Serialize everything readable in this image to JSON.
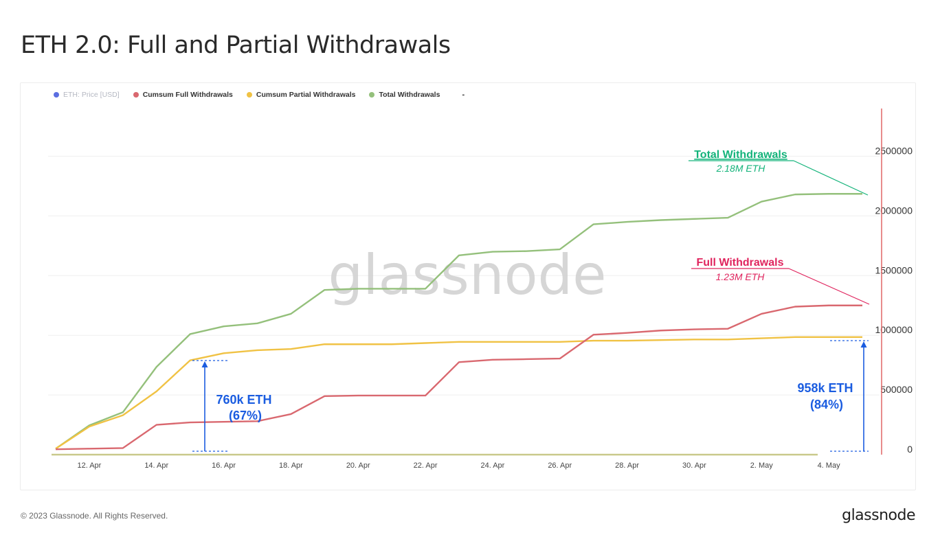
{
  "title": "ETH 2.0: Full and Partial Withdrawals",
  "footer": {
    "copyright": "© 2023 Glassnode. All Rights Reserved.",
    "logo": "glassnode"
  },
  "watermark": "glassnode",
  "legend": [
    {
      "label": "ETH: Price [USD]",
      "color": "#5b6ee1",
      "muted": true
    },
    {
      "label": "Cumsum Full Withdrawals",
      "color": "#d9686f",
      "muted": false
    },
    {
      "label": "Cumsum Partial Withdrawals",
      "color": "#f0c244",
      "muted": false
    },
    {
      "label": "Total Withdrawals",
      "color": "#94c07b",
      "muted": false
    }
  ],
  "legend_extra": "-",
  "annotations": {
    "total": {
      "title": "Total Withdrawals",
      "value": "2.18M ETH",
      "color": "#13b37a"
    },
    "full": {
      "title": "Full Withdrawals",
      "value": "1.23M ETH",
      "color": "#e0245e"
    },
    "partial_1_line1": "760k ETH",
    "partial_1_line2": "(67%)",
    "partial_2_line1": "958k ETH",
    "partial_2_line2": "(84%)",
    "callout_color": "#1a5ce0"
  },
  "chart_data": {
    "type": "line",
    "x": [
      "11 Apr",
      "12 Apr",
      "13 Apr",
      "14 Apr",
      "15 Apr",
      "16 Apr",
      "17 Apr",
      "18 Apr",
      "19 Apr",
      "20 Apr",
      "21 Apr",
      "22 Apr",
      "23 Apr",
      "24 Apr",
      "25 Apr",
      "26 Apr",
      "27 Apr",
      "28 Apr",
      "29 Apr",
      "30 Apr",
      "1 May",
      "2 May",
      "3 May",
      "4 May",
      "5 May"
    ],
    "x_tick_labels": [
      "12. Apr",
      "14. Apr",
      "16. Apr",
      "18. Apr",
      "20. Apr",
      "22. Apr",
      "24. Apr",
      "26. Apr",
      "28. Apr",
      "30. Apr",
      "2. May",
      "4. May"
    ],
    "y_tick_labels": [
      "0",
      "500000",
      "1000000",
      "1500000",
      "2000000",
      "2500000"
    ],
    "ylim": [
      0,
      2900000
    ],
    "grid": true,
    "legend_position": "top-left",
    "series": [
      {
        "name": "Total Withdrawals",
        "color": "#94c07b",
        "values": [
          50000,
          245000,
          355000,
          735000,
          1010000,
          1075000,
          1100000,
          1180000,
          1380000,
          1390000,
          1390000,
          1390000,
          1670000,
          1700000,
          1705000,
          1720000,
          1930000,
          1950000,
          1965000,
          1975000,
          1985000,
          2120000,
          2180000,
          2185000,
          2185000
        ]
      },
      {
        "name": "Cumsum Partial Withdrawals",
        "color": "#f0c244",
        "values": [
          50000,
          235000,
          330000,
          530000,
          790000,
          850000,
          875000,
          885000,
          925000,
          925000,
          925000,
          935000,
          945000,
          945000,
          945000,
          945000,
          955000,
          955000,
          960000,
          965000,
          965000,
          975000,
          985000,
          985000,
          985000
        ]
      },
      {
        "name": "Cumsum Full Withdrawals",
        "color": "#d9686f",
        "values": [
          45000,
          50000,
          55000,
          250000,
          270000,
          275000,
          280000,
          340000,
          490000,
          495000,
          495000,
          495000,
          775000,
          795000,
          800000,
          805000,
          1005000,
          1020000,
          1040000,
          1050000,
          1055000,
          1180000,
          1240000,
          1250000,
          1250000
        ]
      }
    ]
  }
}
